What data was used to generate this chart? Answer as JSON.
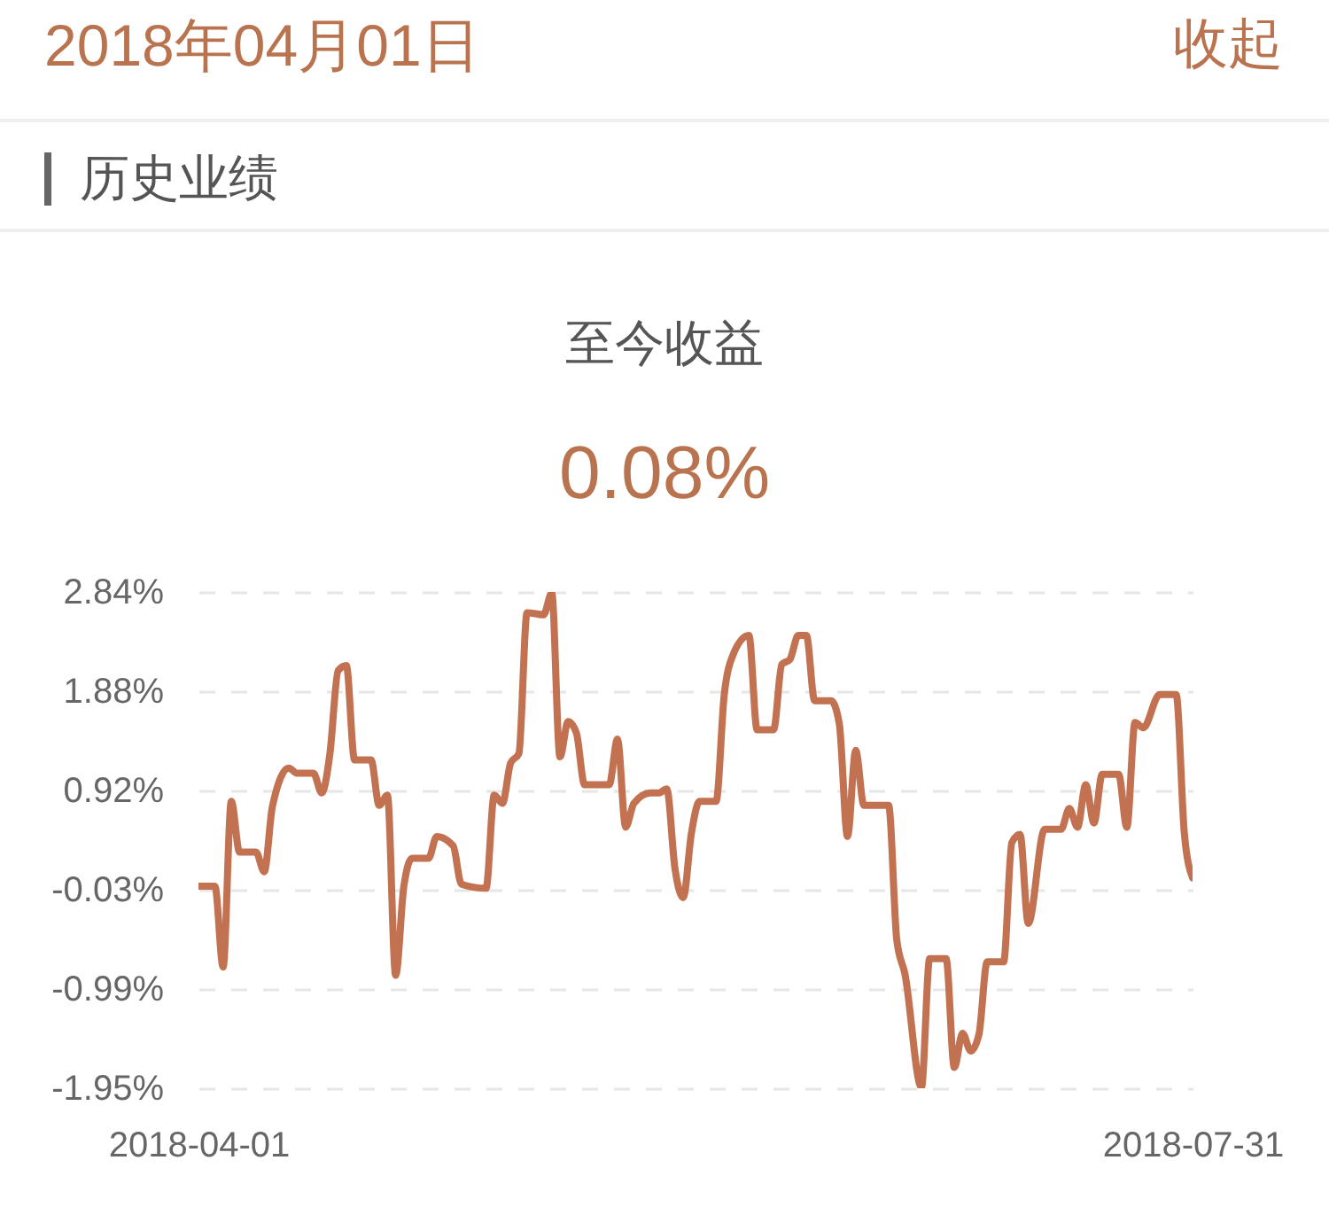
{
  "chart_data": {
    "type": "line",
    "title": "至今收益",
    "subtitle": "0.08%",
    "annotations": [
      "2018年04月01日",
      "收起",
      "历史业绩"
    ],
    "x": [
      "2018-04-01",
      "2018-04-03",
      "2018-04-04",
      "2018-04-05",
      "2018-04-06",
      "2018-04-08",
      "2018-04-09",
      "2018-04-10",
      "2018-04-12",
      "2018-04-13",
      "2018-04-15",
      "2018-04-16",
      "2018-04-17",
      "2018-04-18",
      "2018-04-19",
      "2018-04-20",
      "2018-04-22",
      "2018-04-23",
      "2018-04-24",
      "2018-04-25",
      "2018-04-26",
      "2018-04-27",
      "2018-04-29",
      "2018-04-30",
      "2018-05-02",
      "2018-05-03",
      "2018-05-06",
      "2018-05-07",
      "2018-05-08",
      "2018-05-09",
      "2018-05-10",
      "2018-05-11",
      "2018-05-13",
      "2018-05-14",
      "2018-05-15",
      "2018-05-16",
      "2018-05-17",
      "2018-05-18",
      "2018-05-21",
      "2018-05-22",
      "2018-05-23",
      "2018-05-24",
      "2018-05-26",
      "2018-05-27",
      "2018-05-28",
      "2018-05-29",
      "2018-05-30",
      "2018-05-31",
      "2018-06-01",
      "2018-06-03",
      "2018-06-04",
      "2018-06-05",
      "2018-06-07",
      "2018-06-08",
      "2018-06-10",
      "2018-06-11",
      "2018-06-12",
      "2018-06-13",
      "2018-06-14",
      "2018-06-15",
      "2018-06-17",
      "2018-06-18",
      "2018-06-19",
      "2018-06-20",
      "2018-06-21",
      "2018-06-24",
      "2018-06-25",
      "2018-06-26",
      "2018-06-28",
      "2018-06-29",
      "2018-07-01",
      "2018-07-02",
      "2018-07-03",
      "2018-07-04",
      "2018-07-05",
      "2018-07-06",
      "2018-07-08",
      "2018-07-09",
      "2018-07-10",
      "2018-07-11",
      "2018-07-13",
      "2018-07-15",
      "2018-07-16",
      "2018-07-17",
      "2018-07-18",
      "2018-07-19",
      "2018-07-20",
      "2018-07-22",
      "2018-07-23",
      "2018-07-24",
      "2018-07-25",
      "2018-07-27",
      "2018-07-29",
      "2018-07-30",
      "2018-07-31"
    ],
    "series": [
      {
        "color": "#c27251",
        "values": [
          0.0,
          0.0,
          -0.78,
          0.82,
          0.33,
          0.33,
          0.14,
          0.77,
          1.14,
          1.09,
          1.09,
          0.9,
          1.28,
          2.08,
          2.13,
          1.22,
          1.22,
          0.78,
          0.88,
          -0.86,
          0.0,
          0.27,
          0.27,
          0.48,
          0.39,
          0.02,
          -0.02,
          0.88,
          0.8,
          1.19,
          1.28,
          2.64,
          2.62,
          2.83,
          1.25,
          1.59,
          1.48,
          0.98,
          0.98,
          1.42,
          0.57,
          0.8,
          0.9,
          0.9,
          0.94,
          0.17,
          -0.11,
          0.51,
          0.82,
          0.82,
          1.85,
          2.22,
          2.42,
          1.51,
          1.51,
          2.14,
          2.19,
          2.42,
          2.42,
          1.79,
          1.79,
          1.57,
          0.48,
          1.31,
          0.78,
          0.78,
          -0.52,
          -0.85,
          -1.94,
          -0.7,
          -0.7,
          -1.75,
          -1.42,
          -1.59,
          -1.43,
          -0.73,
          -0.73,
          0.42,
          0.5,
          -0.36,
          0.55,
          0.55,
          0.75,
          0.57,
          0.98,
          0.61,
          1.08,
          1.08,
          0.57,
          1.58,
          1.53,
          1.85,
          1.85,
          0.51,
          0.08
        ]
      }
    ],
    "xlim": [
      "2018-04-01",
      "2018-07-31"
    ],
    "xticks": [
      "2018-04-01",
      "2018-07-31"
    ],
    "ylim": [
      -1.95,
      2.84
    ],
    "yticks": [
      {
        "value": 2.84,
        "label": "2.84%"
      },
      {
        "value": 1.88,
        "label": "1.88%"
      },
      {
        "value": 0.92,
        "label": "0.92%"
      },
      {
        "value": -0.03,
        "label": "-0.03%"
      },
      {
        "value": -0.99,
        "label": "-0.99%"
      },
      {
        "value": -1.95,
        "label": "-1.95%"
      }
    ],
    "grid": "y"
  }
}
